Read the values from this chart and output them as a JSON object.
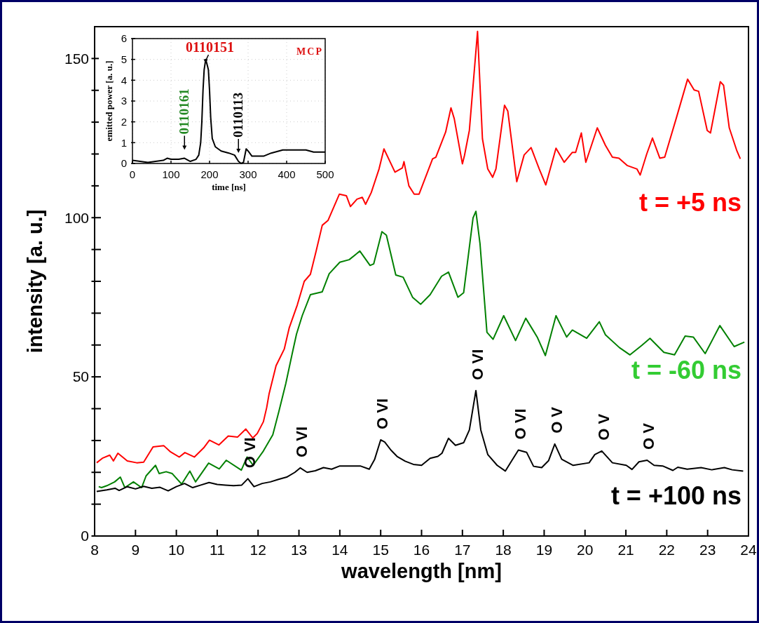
{
  "chart_data": [
    {
      "type": "line",
      "xlabel": "wavelength [nm]",
      "ylabel": "intensity [a. u.]",
      "xlim": [
        8,
        24
      ],
      "xticks": [
        8,
        9,
        10,
        11,
        12,
        13,
        14,
        15,
        16,
        17,
        18,
        19,
        20,
        21,
        22,
        23,
        24
      ],
      "ylim": [
        0,
        160
      ],
      "yticks": [
        0,
        {
          "value": 10,
          "label": null
        },
        {
          "value": 20,
          "label": null
        },
        {
          "value": 30,
          "label": null
        },
        {
          "value": 40,
          "label": null
        },
        50,
        {
          "value": 60,
          "label": null
        },
        {
          "value": 70,
          "label": null
        },
        {
          "value": 80,
          "label": null
        },
        {
          "value": 90,
          "label": null
        },
        100,
        {
          "value": 110,
          "label": null
        },
        {
          "value": 120,
          "label": null
        },
        {
          "value": 130,
          "label": null
        },
        {
          "value": 140,
          "label": null
        },
        150
      ],
      "grid": false,
      "series": [
        {
          "name": "t = +5 ns",
          "color": "#ff0000",
          "x": [
            8.05,
            8.2,
            8.37,
            8.46,
            8.57,
            8.8,
            9.03,
            9.2,
            9.43,
            9.69,
            9.86,
            10.07,
            10.21,
            10.44,
            10.67,
            10.81,
            11.04,
            11.27,
            11.5,
            11.7,
            11.87,
            11.98,
            12.13,
            12.21,
            12.27,
            12.44,
            12.64,
            12.76,
            12.96,
            13.13,
            13.28,
            13.42,
            13.57,
            13.71,
            13.99,
            14.16,
            14.26,
            14.42,
            14.55,
            14.63,
            14.77,
            14.96,
            15.08,
            15.35,
            15.53,
            15.57,
            15.69,
            15.82,
            15.94,
            16.27,
            16.35,
            16.59,
            16.72,
            16.8,
            17.0,
            17.05,
            17.17,
            17.37,
            17.49,
            17.62,
            17.74,
            17.82,
            18.03,
            18.11,
            18.33,
            18.51,
            18.68,
            18.88,
            19.04,
            19.29,
            19.49,
            19.69,
            19.77,
            19.91,
            20.02,
            20.3,
            20.5,
            20.67,
            20.83,
            21.03,
            21.27,
            21.35,
            21.51,
            21.65,
            21.83,
            21.95,
            22.23,
            22.51,
            22.67,
            22.78,
            22.99,
            23.07,
            23.31,
            23.39,
            23.53,
            23.71,
            23.8
          ],
          "values": [
            23,
            24.5,
            25.4,
            23.6,
            26,
            23.6,
            23,
            23.2,
            28,
            28.4,
            26.4,
            24.8,
            26.2,
            24.8,
            27.7,
            30.1,
            28.6,
            31.4,
            31.1,
            33.6,
            30.8,
            32.2,
            35.9,
            40.3,
            44.7,
            53.5,
            58.7,
            65.3,
            72.6,
            80,
            82.2,
            89.5,
            97.6,
            99.1,
            107.4,
            106.9,
            103.5,
            105.8,
            106.4,
            104.2,
            107.9,
            115.3,
            121.6,
            114.3,
            115.6,
            117.6,
            110,
            107.4,
            107.4,
            118.5,
            119,
            126.9,
            134.5,
            131.1,
            116.9,
            119.5,
            127.4,
            158.5,
            124.8,
            115.3,
            112.7,
            115.3,
            135.3,
            133.5,
            111.3,
            119.7,
            122,
            115.3,
            110.3,
            121.8,
            117.4,
            120.5,
            120.5,
            126.6,
            117.4,
            128.2,
            122.7,
            119,
            118.7,
            116.4,
            115.3,
            113.4,
            120,
            125,
            118.7,
            119,
            131.1,
            143.5,
            140.1,
            139.7,
            127.4,
            126.6,
            142.7,
            141.6,
            128.2,
            121.2,
            118.5
          ]
        },
        {
          "name": "t = -60 ns",
          "color": "#008000",
          "x": [
            8.1,
            8.17,
            8.3,
            8.49,
            8.63,
            8.74,
            8.95,
            9.15,
            9.26,
            9.49,
            9.58,
            9.75,
            9.9,
            10.13,
            10.33,
            10.47,
            10.79,
            11.05,
            11.22,
            11.59,
            11.73,
            11.88,
            12.13,
            12.36,
            12.51,
            12.68,
            12.85,
            12.94,
            13.08,
            13.28,
            13.57,
            13.74,
            14.0,
            14.23,
            14.49,
            14.74,
            14.83,
            15.03,
            15.14,
            15.37,
            15.55,
            15.78,
            15.98,
            16.21,
            16.49,
            16.66,
            16.89,
            17.03,
            17.26,
            17.33,
            17.43,
            17.6,
            17.75,
            18.01,
            18.3,
            18.55,
            18.83,
            19.03,
            19.29,
            19.55,
            19.69,
            20.04,
            20.35,
            20.5,
            20.84,
            21.1,
            21.39,
            21.59,
            21.93,
            22.19,
            22.45,
            22.65,
            22.94,
            23.3,
            23.65,
            23.9
          ],
          "values": [
            15.5,
            15.2,
            15.8,
            17,
            18.5,
            15.2,
            17,
            15.2,
            18.9,
            22.2,
            19.6,
            20.2,
            19.6,
            16.3,
            20.4,
            17,
            22.9,
            21.1,
            23.8,
            20.7,
            24.8,
            22.2,
            26.7,
            31.8,
            39.2,
            48,
            58.2,
            63.4,
            69.2,
            75.8,
            76.7,
            82.4,
            86,
            86.8,
            89.5,
            85,
            85.5,
            95.6,
            94.5,
            82,
            81.3,
            75,
            72.8,
            75.8,
            81.6,
            82.9,
            75,
            76.4,
            99.9,
            102,
            91.9,
            64,
            61.8,
            69.2,
            61.4,
            68.4,
            62.5,
            56.7,
            69.2,
            62.5,
            64.7,
            62.1,
            67.3,
            63.2,
            59.2,
            56.9,
            59.9,
            62.1,
            57.7,
            56.9,
            62.8,
            62.5,
            57.3,
            66.1,
            59.5,
            60.9
          ]
        },
        {
          "name": "t = +100 ns",
          "color": "#000000",
          "x": [
            8.05,
            8.3,
            8.5,
            8.6,
            8.8,
            9.0,
            9.2,
            9.4,
            9.6,
            9.8,
            10.0,
            10.2,
            10.4,
            10.6,
            10.8,
            11.0,
            11.2,
            11.4,
            11.6,
            11.75,
            11.9,
            12.1,
            12.3,
            12.5,
            12.7,
            12.9,
            13.03,
            13.2,
            13.4,
            13.6,
            13.8,
            14.0,
            14.2,
            14.5,
            14.72,
            14.85,
            15.0,
            15.1,
            15.25,
            15.4,
            15.6,
            15.8,
            16.0,
            16.21,
            16.4,
            16.5,
            16.66,
            16.83,
            17.03,
            17.17,
            17.33,
            17.45,
            17.62,
            17.85,
            18.05,
            18.19,
            18.37,
            18.57,
            18.74,
            18.94,
            19.11,
            19.26,
            19.43,
            19.71,
            20.1,
            20.24,
            20.41,
            20.67,
            21.01,
            21.15,
            21.32,
            21.52,
            21.69,
            21.9,
            22.15,
            22.27,
            22.5,
            22.84,
            23.1,
            23.41,
            23.6,
            23.87
          ],
          "values": [
            14,
            14.5,
            15,
            14.3,
            15.5,
            14.8,
            15.6,
            15,
            15.3,
            14.2,
            15.5,
            16.5,
            15.2,
            16,
            16.8,
            16.2,
            16,
            15.8,
            16,
            18,
            15.5,
            16.5,
            17,
            17.8,
            18.5,
            20,
            21.4,
            20,
            20.5,
            21.5,
            21,
            22,
            22,
            22,
            21,
            24,
            30.2,
            29.5,
            27,
            25,
            23.5,
            22.5,
            22.2,
            24.4,
            25,
            26,
            30.7,
            28.5,
            29.3,
            33.3,
            45.7,
            33.3,
            25.6,
            22.2,
            20.4,
            23.3,
            27,
            26.3,
            21.9,
            21.5,
            23.7,
            28.9,
            24.1,
            22.2,
            23,
            25.6,
            26.7,
            23,
            22.2,
            20.9,
            23.3,
            23.8,
            22.2,
            22,
            20.6,
            21.6,
            21,
            21.5,
            20.8,
            21.5,
            20.8,
            20.4
          ]
        }
      ],
      "annotations": [
        {
          "text": "O VI",
          "x": 11.75,
          "y": 18
        },
        {
          "text": "O VI",
          "x": 13.03,
          "y": 21.4
        },
        {
          "text": "O VI",
          "x": 15.0,
          "y": 30.2
        },
        {
          "text": "O VI",
          "x": 17.33,
          "y": 45.7
        },
        {
          "text": "O VI",
          "x": 18.37,
          "y": 27
        },
        {
          "text": "O V",
          "x": 19.26,
          "y": 28.9
        },
        {
          "text": "O V",
          "x": 20.41,
          "y": 26.7
        },
        {
          "text": "O V",
          "x": 21.52,
          "y": 23.8
        }
      ]
    },
    {
      "type": "line",
      "xlabel": "time [ns]",
      "ylabel": "emitted power [a. u.]",
      "xlim": [
        0,
        500
      ],
      "xticks": [
        0,
        100,
        200,
        300,
        400,
        500
      ],
      "ylim": [
        0,
        6
      ],
      "yticks": [
        0,
        1,
        2,
        3,
        4,
        5,
        6
      ],
      "grid": true,
      "series": [
        {
          "color": "#000000",
          "x": [
            0,
            20,
            40,
            60,
            80,
            90,
            100,
            120,
            135,
            150,
            165,
            172,
            177,
            180,
            183,
            186,
            190,
            193,
            197,
            200,
            203,
            207,
            215,
            230,
            250,
            265,
            275,
            282,
            288,
            295,
            300,
            310,
            340,
            360,
            390,
            420,
            450,
            470,
            500
          ],
          "values": [
            0.15,
            0.1,
            0.05,
            0.1,
            0.15,
            0.25,
            0.2,
            0.2,
            0.25,
            0.1,
            0.2,
            0.4,
            1.0,
            2.0,
            3.5,
            4.5,
            5.0,
            4.8,
            4.5,
            3.5,
            2.2,
            1.2,
            0.8,
            0.6,
            0.5,
            0.4,
            0.1,
            0,
            0.05,
            0.7,
            0.6,
            0.35,
            0.35,
            0.5,
            0.65,
            0.65,
            0.65,
            0.55,
            0.55
          ]
        }
      ],
      "annotations": [
        {
          "text": "0110151",
          "x": 190,
          "y": 4.8
        },
        {
          "text": "0110161",
          "x": 135,
          "y": 0.25
        },
        {
          "text": "0110113",
          "x": 275,
          "y": 0.1
        },
        "MCP"
      ]
    }
  ]
}
